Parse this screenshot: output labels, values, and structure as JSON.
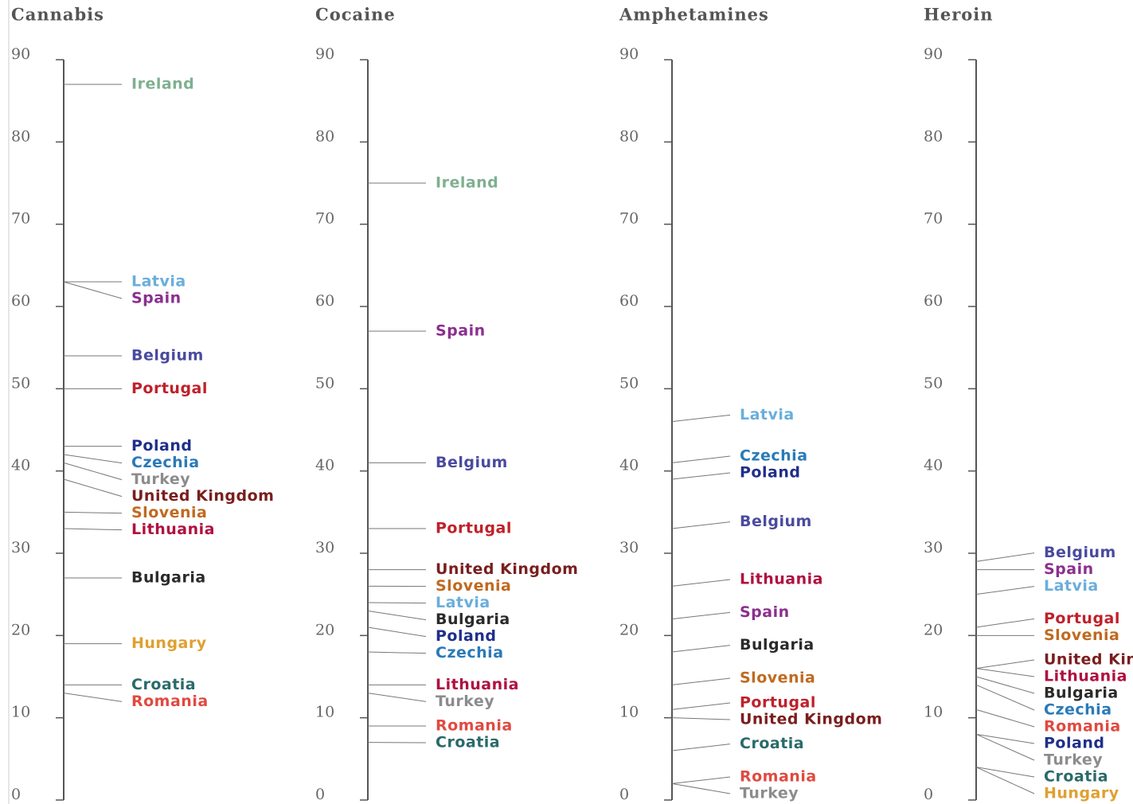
{
  "chart_data": [
    {
      "type": "label-axis",
      "title": "Cannabis",
      "ylim": [
        0,
        90
      ],
      "yticks": [
        0,
        10,
        20,
        30,
        40,
        50,
        60,
        70,
        80,
        90
      ],
      "categories": [
        "Ireland",
        "Latvia",
        "Spain",
        "Belgium",
        "Portugal",
        "Poland",
        "Czechia",
        "Turkey",
        "United Kingdom",
        "Slovenia",
        "Lithuania",
        "Bulgaria",
        "Hungary",
        "Croatia",
        "Romania"
      ],
      "values": [
        87,
        63,
        63,
        54,
        50,
        43,
        42,
        41,
        39,
        35,
        33,
        27,
        19,
        14,
        13
      ],
      "colors": [
        "#7fb08f",
        "#6aaedc",
        "#8b2f8f",
        "#4a4aa0",
        "#c0202a",
        "#1f2f8a",
        "#2a7ab8",
        "#8c8c8c",
        "#7a1e1e",
        "#c06a20",
        "#b01040",
        "#2a2a2a",
        "#e0a030",
        "#2a6a6a",
        "#e04a40"
      ]
    },
    {
      "type": "label-axis",
      "title": "Cocaine",
      "ylim": [
        0,
        90
      ],
      "yticks": [
        0,
        10,
        20,
        30,
        40,
        50,
        60,
        70,
        80,
        90
      ],
      "categories": [
        "Ireland",
        "Spain",
        "Belgium",
        "Portugal",
        "United Kingdom",
        "Slovenia",
        "Latvia",
        "Bulgaria",
        "Poland",
        "Czechia",
        "Lithuania",
        "Turkey",
        "Romania",
        "Croatia"
      ],
      "values": [
        75,
        57,
        41,
        33,
        28,
        26,
        24,
        23,
        21,
        18,
        14,
        13,
        9,
        7
      ],
      "colors": [
        "#7fb08f",
        "#8b2f8f",
        "#4a4aa0",
        "#c0202a",
        "#7a1e1e",
        "#c06a20",
        "#6aaedc",
        "#2a2a2a",
        "#1f2f8a",
        "#2a7ab8",
        "#b01040",
        "#8c8c8c",
        "#e04a40",
        "#2a6a6a"
      ]
    },
    {
      "type": "label-axis",
      "title": "Amphetamines",
      "ylim": [
        0,
        90
      ],
      "yticks": [
        0,
        10,
        20,
        30,
        40,
        50,
        60,
        70,
        80,
        90
      ],
      "categories": [
        "Latvia",
        "Czechia",
        "Poland",
        "Belgium",
        "Lithuania",
        "Spain",
        "Bulgaria",
        "Slovenia",
        "Portugal",
        "United Kingdom",
        "Croatia",
        "Romania",
        "Turkey"
      ],
      "values": [
        46,
        41,
        39,
        33,
        26,
        22,
        18,
        14,
        11,
        10,
        6,
        2,
        2
      ],
      "colors": [
        "#6aaedc",
        "#2a7ab8",
        "#1f2f8a",
        "#4a4aa0",
        "#b01040",
        "#8b2f8f",
        "#2a2a2a",
        "#c06a20",
        "#c0202a",
        "#7a1e1e",
        "#2a6a6a",
        "#e04a40",
        "#8c8c8c"
      ]
    },
    {
      "type": "label-axis",
      "title": "Heroin",
      "ylim": [
        0,
        90
      ],
      "yticks": [
        0,
        10,
        20,
        30,
        40,
        50,
        60,
        70,
        80,
        90
      ],
      "categories": [
        "Belgium",
        "Spain",
        "Latvia",
        "Portugal",
        "Slovenia",
        "United Kingdom",
        "Lithuania",
        "Bulgaria",
        "Czechia",
        "Romania",
        "Poland",
        "Turkey",
        "Croatia",
        "Hungary"
      ],
      "values": [
        29,
        28,
        25,
        21,
        20,
        16,
        16,
        15,
        14,
        11,
        8,
        8,
        4,
        4
      ],
      "colors": [
        "#4a4aa0",
        "#8b2f8f",
        "#6aaedc",
        "#c0202a",
        "#c06a20",
        "#7a1e1e",
        "#b01040",
        "#2a2a2a",
        "#2a7ab8",
        "#e04a40",
        "#1f2f8a",
        "#8c8c8c",
        "#2a6a6a",
        "#e0a030"
      ]
    }
  ]
}
